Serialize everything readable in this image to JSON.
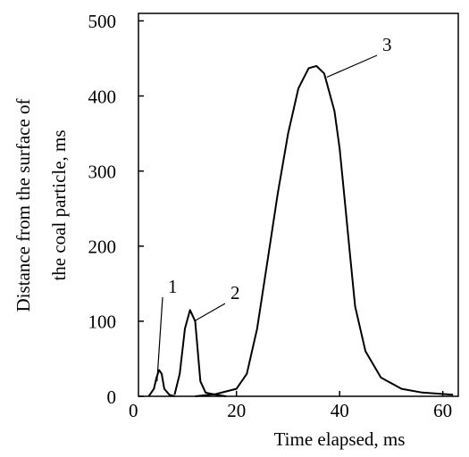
{
  "chart_data": {
    "type": "line",
    "xlabel": "Time elapsed, ms",
    "ylabel": [
      "Distance from the surface of",
      "the coal particle, ms"
    ],
    "xlim": [
      1,
      63
    ],
    "ylim": [
      0,
      510
    ],
    "xticks": [
      0,
      20,
      40,
      60
    ],
    "yticks": [
      0,
      100,
      200,
      300,
      400,
      500
    ],
    "series": [
      {
        "name": "1",
        "color": "#000000",
        "x": [
          3,
          4,
          4.5,
          5,
          5.5,
          6,
          7,
          8
        ],
        "y": [
          0,
          10,
          25,
          35,
          30,
          10,
          2,
          0
        ]
      },
      {
        "name": "2",
        "color": "#000000",
        "x": [
          8,
          9,
          10,
          11,
          12,
          12.5,
          13,
          14,
          16,
          18
        ],
        "y": [
          2,
          30,
          90,
          115,
          100,
          60,
          20,
          5,
          2,
          0
        ]
      },
      {
        "name": "3",
        "color": "#000000",
        "x": [
          12,
          16,
          20,
          22,
          24,
          26,
          28,
          30,
          32,
          34,
          35.5,
          37,
          39,
          40,
          41,
          42,
          43,
          45,
          48,
          52,
          56,
          62
        ],
        "y": [
          0,
          3,
          10,
          30,
          90,
          180,
          270,
          350,
          410,
          437,
          440,
          430,
          380,
          330,
          260,
          190,
          120,
          60,
          25,
          10,
          5,
          2
        ]
      }
    ]
  }
}
